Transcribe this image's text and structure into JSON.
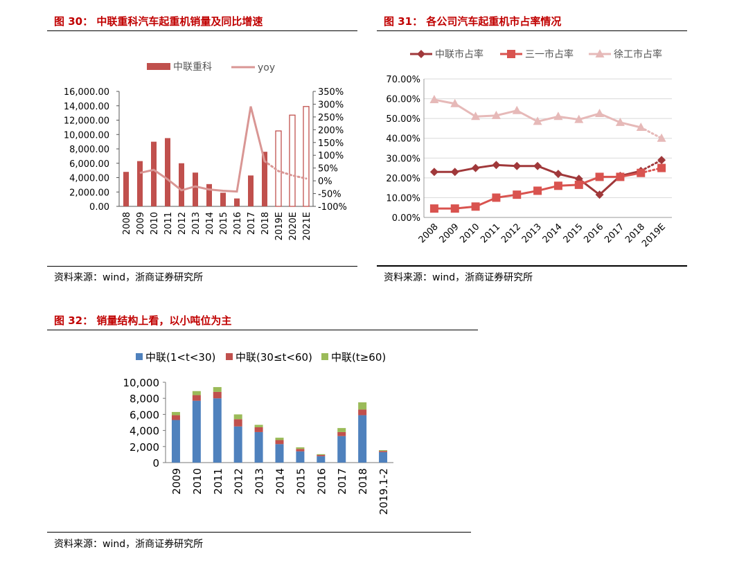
{
  "figures": [
    {
      "title": "图 30： 中联重科汽车起重机销量及同比增速",
      "source": "资料来源：wind，浙商证券研究所"
    },
    {
      "title": "图 31： 各公司汽车起重机市占率情况",
      "source": "资料来源：wind，浙商证券研究所"
    },
    {
      "title": "图 32： 销量结构上看，以小吨位为主",
      "source": "资料来源：wind，浙商证券研究所"
    }
  ],
  "colors": {
    "title": "#c00000",
    "bar30": "#c0504d",
    "yoy": "#d99694",
    "zoomlion_share": "#a0383a",
    "sany_share": "#d9534f",
    "xcmg_share": "#e6b9b8",
    "s1": "#4f81bd",
    "s2": "#c0504d",
    "s3": "#9bbb59"
  },
  "chart_data": [
    {
      "type": "bar",
      "title": "",
      "categories": [
        "2008",
        "2009",
        "2010",
        "2011",
        "2012",
        "2013",
        "2014",
        "2015",
        "2016",
        "2017",
        "2018",
        "2019E",
        "2020E",
        "2021E"
      ],
      "series": [
        {
          "name": "中联重科",
          "type": "bar",
          "axis": "left",
          "values": [
            4800,
            6300,
            9000,
            9500,
            6000,
            4700,
            3100,
            1900,
            1100,
            4300,
            7600,
            10500,
            12700,
            13900
          ],
          "forecast_from_index": 11
        },
        {
          "name": "yoy",
          "type": "line",
          "axis": "right",
          "values": [
            null,
            31,
            43,
            6,
            -37,
            -22,
            -34,
            -39,
            -42,
            291,
            77,
            38,
            21,
            9
          ],
          "forecast_from_index": 10
        }
      ],
      "yleft": {
        "min": 0,
        "max": 16000,
        "ticks": [
          "0.00",
          "2,000.00",
          "4,000.00",
          "6,000.00",
          "8,000.00",
          "10,000.00",
          "12,000.00",
          "14,000.00",
          "16,000.00"
        ]
      },
      "yright": {
        "min": -100,
        "max": 350,
        "ticks": [
          "-100%",
          "-50%",
          "0%",
          "50%",
          "100%",
          "150%",
          "200%",
          "250%",
          "300%",
          "350%"
        ]
      },
      "legend": [
        "中联重科",
        "yoy"
      ],
      "legend_position": "top"
    },
    {
      "type": "line",
      "title": "",
      "categories": [
        "2008",
        "2009",
        "2010",
        "2011",
        "2012",
        "2013",
        "2014",
        "2015",
        "2016",
        "2017",
        "2018",
        "2019E"
      ],
      "series": [
        {
          "name": "中联市占率",
          "marker": "diamond",
          "values": [
            23.0,
            23.0,
            25.0,
            26.5,
            26.0,
            26.0,
            22.0,
            19.5,
            11.5,
            21.0,
            23.5,
            29.0
          ]
        },
        {
          "name": "三一市占率",
          "marker": "square",
          "values": [
            4.5,
            4.5,
            5.5,
            10.0,
            11.5,
            13.5,
            16.0,
            16.5,
            20.5,
            20.5,
            22.5,
            25.0
          ]
        },
        {
          "name": "徐工市占率",
          "marker": "triangle",
          "values": [
            59.5,
            57.5,
            51.0,
            51.5,
            54.0,
            48.5,
            51.0,
            49.5,
            52.5,
            48.0,
            45.5,
            40.0
          ]
        }
      ],
      "forecast_from_index": 10,
      "ylim": [
        0,
        70
      ],
      "yticks": [
        "0.00%",
        "10.00%",
        "20.00%",
        "30.00%",
        "40.00%",
        "50.00%",
        "60.00%",
        "70.00%"
      ],
      "legend_position": "top"
    },
    {
      "type": "bar",
      "stacked": true,
      "title": "",
      "categories": [
        "2009",
        "2010",
        "2011",
        "2012",
        "2013",
        "2014",
        "2015",
        "2016",
        "2017",
        "2018",
        "2019.1-2"
      ],
      "series": [
        {
          "name": "中联(1<t<30)",
          "values": [
            5300,
            7700,
            8000,
            4500,
            3800,
            2300,
            1400,
            800,
            3300,
            5900,
            1300
          ]
        },
        {
          "name": "中联(30≤t<60)",
          "values": [
            600,
            700,
            800,
            900,
            600,
            500,
            300,
            150,
            500,
            700,
            150
          ]
        },
        {
          "name": "中联(t≥60)",
          "values": [
            400,
            500,
            600,
            600,
            300,
            300,
            200,
            100,
            500,
            900,
            100
          ]
        }
      ],
      "ylim": [
        0,
        10000
      ],
      "yticks": [
        "0",
        "2,000",
        "4,000",
        "6,000",
        "8,000",
        "10,000"
      ],
      "legend_position": "top"
    }
  ]
}
